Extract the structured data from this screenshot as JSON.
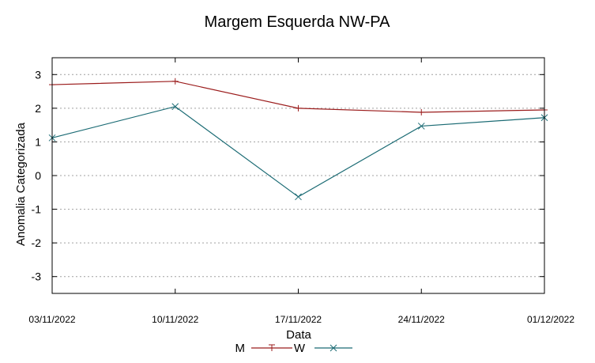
{
  "chart_data": {
    "type": "line",
    "title": "Margem Esquerda NW-PA",
    "xlabel": "Data",
    "ylabel": "Anomalia Categorizada",
    "categories": [
      "03/11/2022",
      "10/11/2022",
      "17/11/2022",
      "24/11/2022",
      "01/12/2022"
    ],
    "y_ticks": [
      "3",
      "2",
      "1",
      "0",
      "-1",
      "-2",
      "-3"
    ],
    "y_tick_values": [
      3,
      2,
      1,
      0,
      -1,
      -2,
      -3
    ],
    "ylim": [
      -3.5,
      3.5
    ],
    "grid": true,
    "legend_position": "bottom-center",
    "series": [
      {
        "name": "M",
        "color": "#9b1c1c",
        "marker": "plus",
        "values": [
          2.7,
          2.8,
          2.0,
          1.88,
          1.95
        ]
      },
      {
        "name": "W",
        "color": "#1b6b74",
        "marker": "cross",
        "values": [
          1.12,
          2.05,
          -0.63,
          1.47,
          1.72
        ]
      }
    ]
  }
}
